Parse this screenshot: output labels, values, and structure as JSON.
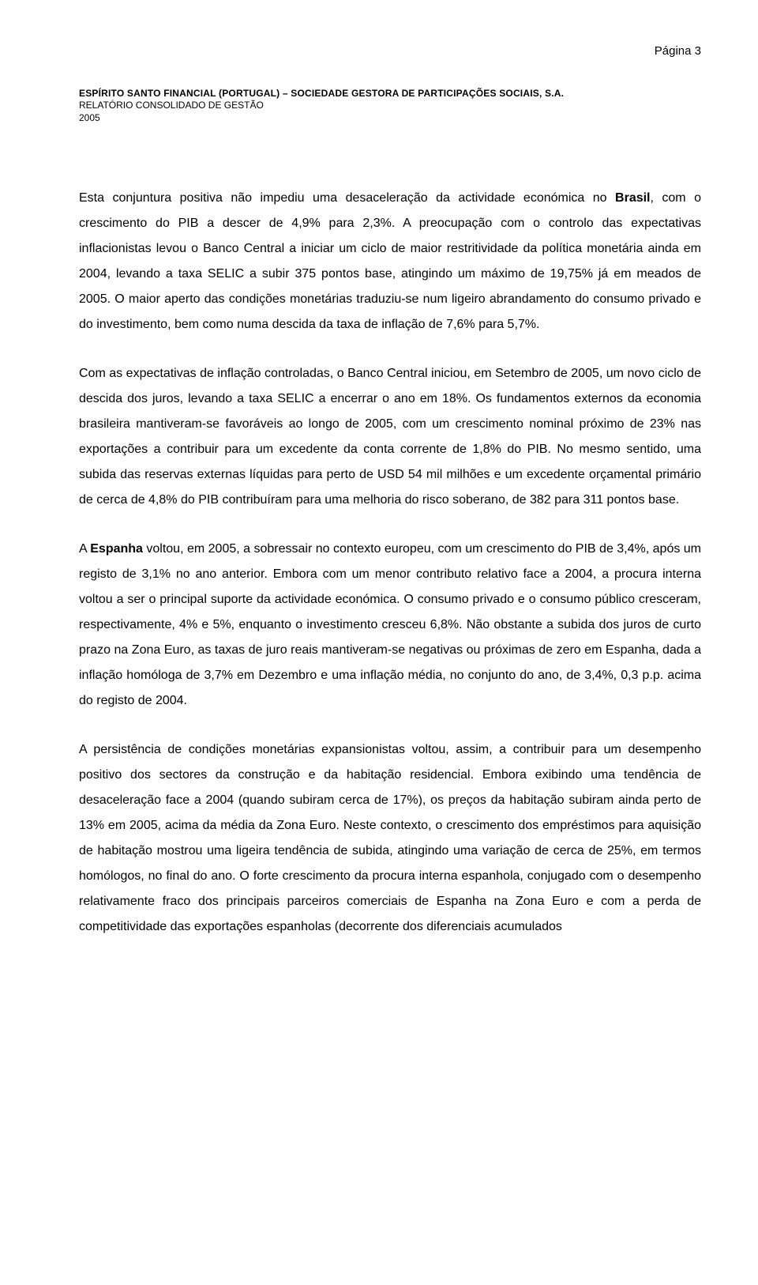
{
  "page_label": "Página 3",
  "header": {
    "line1": "ESPÍRITO SANTO FINANCIAL (PORTUGAL) – SOCIEDADE GESTORA DE PARTICIPAÇÕES SOCIAIS, S.A.",
    "line2": "RELATÓRIO CONSOLIDADO DE GESTÃO",
    "line3": "2005"
  },
  "paragraphs": {
    "p1_pre": "Esta conjuntura positiva não impediu uma desaceleração da actividade económica no ",
    "p1_bold": "Brasil",
    "p1_post": ", com o crescimento do PIB a descer de 4,9% para 2,3%. A preocupação com o controlo das expectativas inflacionistas levou o Banco Central a iniciar um ciclo de maior restritividade da política monetária ainda em 2004, levando a taxa SELIC a subir 375 pontos base, atingindo um máximo de 19,75% já em meados de 2005. O maior aperto das condições monetárias traduziu-se num ligeiro abrandamento do consumo privado e do investimento, bem como numa descida da taxa de inflação de 7,6% para 5,7%.",
    "p2": "Com as expectativas de inflação controladas, o Banco Central iniciou, em Setembro de 2005, um novo ciclo de descida dos juros, levando a taxa SELIC a encerrar o ano em 18%. Os fundamentos externos da economia brasileira mantiveram-se favoráveis ao longo de 2005, com um crescimento nominal próximo de 23% nas exportações a contribuir para um excedente da conta corrente de 1,8% do PIB. No mesmo sentido, uma subida das reservas externas líquidas para perto de USD 54 mil milhões e um excedente orçamental primário de cerca de 4,8% do PIB contribuíram para uma melhoria do risco soberano, de 382 para 311 pontos base.",
    "p3_pre": "A ",
    "p3_bold": "Espanha",
    "p3_post": " voltou, em 2005, a sobressair no contexto europeu, com um crescimento do PIB de 3,4%, após um registo de 3,1% no ano anterior. Embora com um menor contributo relativo face a 2004, a procura interna voltou a ser o principal suporte da actividade económica. O consumo privado e o consumo público cresceram, respectivamente, 4% e 5%, enquanto o investimento cresceu 6,8%. Não obstante a subida dos juros de curto prazo na Zona Euro, as taxas de juro reais mantiveram-se negativas ou próximas de zero em Espanha, dada a inflação homóloga de 3,7% em Dezembro e uma inflação média, no conjunto do ano, de 3,4%, 0,3 p.p. acima do registo de 2004.",
    "p4": "A persistência de condições monetárias expansionistas voltou, assim, a contribuir para um desempenho positivo dos sectores da construção e da habitação residencial. Embora exibindo uma tendência de desaceleração face a 2004 (quando subiram cerca de 17%), os preços da habitação subiram ainda perto de 13% em 2005, acima da média da Zona Euro. Neste contexto, o crescimento dos empréstimos para aquisição de habitação mostrou uma ligeira tendência de subida, atingindo uma variação de cerca de 25%, em termos homólogos, no final do ano. O forte crescimento da procura interna espanhola, conjugado com o desempenho relativamente fraco dos principais parceiros comerciais de Espanha na Zona Euro e com a perda de competitividade das exportações espanholas (decorrente dos diferenciais acumulados"
  }
}
